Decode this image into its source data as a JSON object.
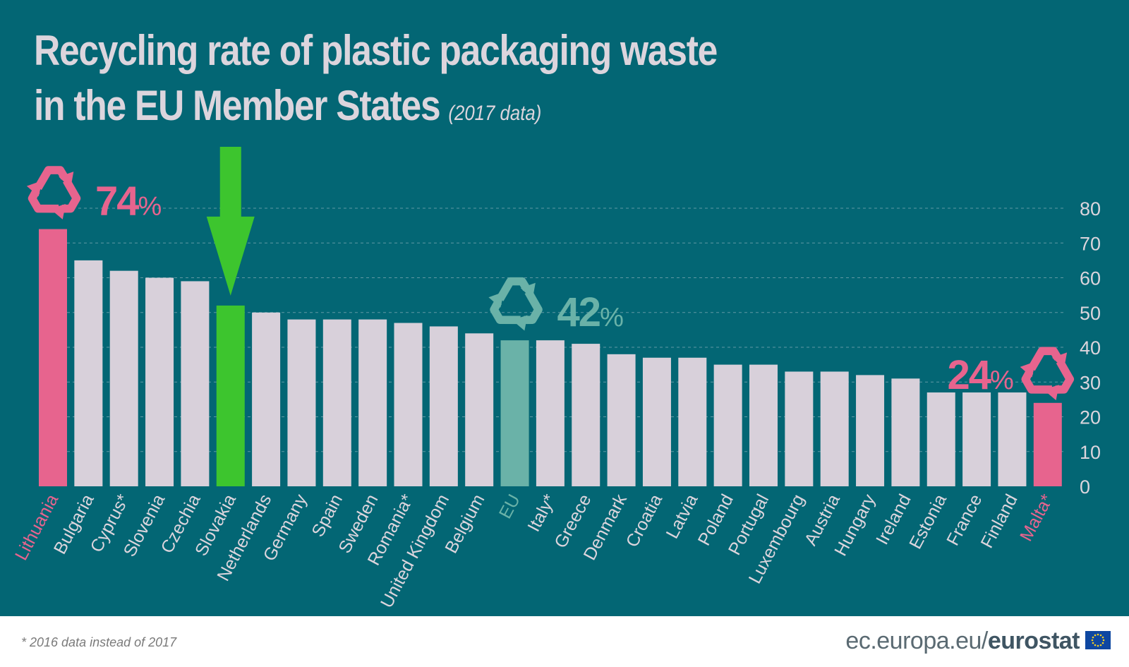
{
  "title": {
    "line1": "Recycling rate of plastic packaging waste",
    "line2": "in the EU Member States",
    "subtitle": "(2017 data)"
  },
  "footnote": "* 2016 data instead of 2017",
  "source": {
    "prefix": "ec.europa.eu/",
    "brand": "eurostat"
  },
  "colors": {
    "background": "#036674",
    "bar": "#d8d0da",
    "highlight_pink": "#e7648e",
    "highlight_green": "#3dc52e",
    "eu_teal": "#6ab2a8",
    "label": "#dcd5dd"
  },
  "chart_data": {
    "type": "bar",
    "categories": [
      "Lithuania",
      "Bulgaria",
      "Cyprus*",
      "Slovenia",
      "Czechia",
      "Slovakia",
      "Netherlands",
      "Germany",
      "Spain",
      "Sweden",
      "Romania*",
      "United Kingdom",
      "Belgium",
      "EU",
      "Italy*",
      "Greece",
      "Denmark",
      "Croatia",
      "Latvia",
      "Poland",
      "Portugal",
      "Luxembourg",
      "Austria",
      "Hungary",
      "Ireland",
      "Estonia",
      "France",
      "Finland",
      "Malta*"
    ],
    "values": [
      74,
      65,
      62,
      60,
      59,
      52,
      50,
      48,
      48,
      48,
      47,
      46,
      44,
      42,
      42,
      41,
      38,
      37,
      37,
      35,
      35,
      33,
      33,
      32,
      31,
      27,
      27,
      27,
      24
    ],
    "bar_colors": [
      "#e7648e",
      "#d8d0da",
      "#d8d0da",
      "#d8d0da",
      "#d8d0da",
      "#3dc52e",
      "#d8d0da",
      "#d8d0da",
      "#d8d0da",
      "#d8d0da",
      "#d8d0da",
      "#d8d0da",
      "#d8d0da",
      "#6ab2a8",
      "#d8d0da",
      "#d8d0da",
      "#d8d0da",
      "#d8d0da",
      "#d8d0da",
      "#d8d0da",
      "#d8d0da",
      "#d8d0da",
      "#d8d0da",
      "#d8d0da",
      "#d8d0da",
      "#d8d0da",
      "#d8d0da",
      "#d8d0da",
      "#e7648e"
    ],
    "label_colors": [
      "#e7648e",
      "#dcd5dd",
      "#dcd5dd",
      "#dcd5dd",
      "#dcd5dd",
      "#dcd5dd",
      "#dcd5dd",
      "#dcd5dd",
      "#dcd5dd",
      "#dcd5dd",
      "#dcd5dd",
      "#dcd5dd",
      "#dcd5dd",
      "#6ab2a8",
      "#dcd5dd",
      "#dcd5dd",
      "#dcd5dd",
      "#dcd5dd",
      "#dcd5dd",
      "#dcd5dd",
      "#dcd5dd",
      "#dcd5dd",
      "#dcd5dd",
      "#dcd5dd",
      "#dcd5dd",
      "#dcd5dd",
      "#dcd5dd",
      "#dcd5dd",
      "#e7648e"
    ],
    "ylim": [
      0,
      80
    ],
    "yticks": [
      0,
      10,
      20,
      30,
      40,
      50,
      60,
      70,
      80
    ],
    "y_axis_side": "right",
    "grid": "dashed horizontal",
    "annotations": [
      {
        "category": "Lithuania",
        "number": "74",
        "unit": "%",
        "color": "#e7648e",
        "icon": "recycle-icon",
        "icon_side": "left"
      },
      {
        "category": "EU",
        "number": "42",
        "unit": "%",
        "color": "#6ab2a8",
        "icon": "recycle-icon",
        "icon_side": "left"
      },
      {
        "category": "Malta*",
        "number": "24",
        "unit": "%",
        "color": "#e7648e",
        "icon": "recycle-icon",
        "icon_side": "right"
      }
    ],
    "pointer": {
      "category": "Slovakia",
      "icon": "arrow-down-icon",
      "color": "#3dc52e"
    }
  }
}
